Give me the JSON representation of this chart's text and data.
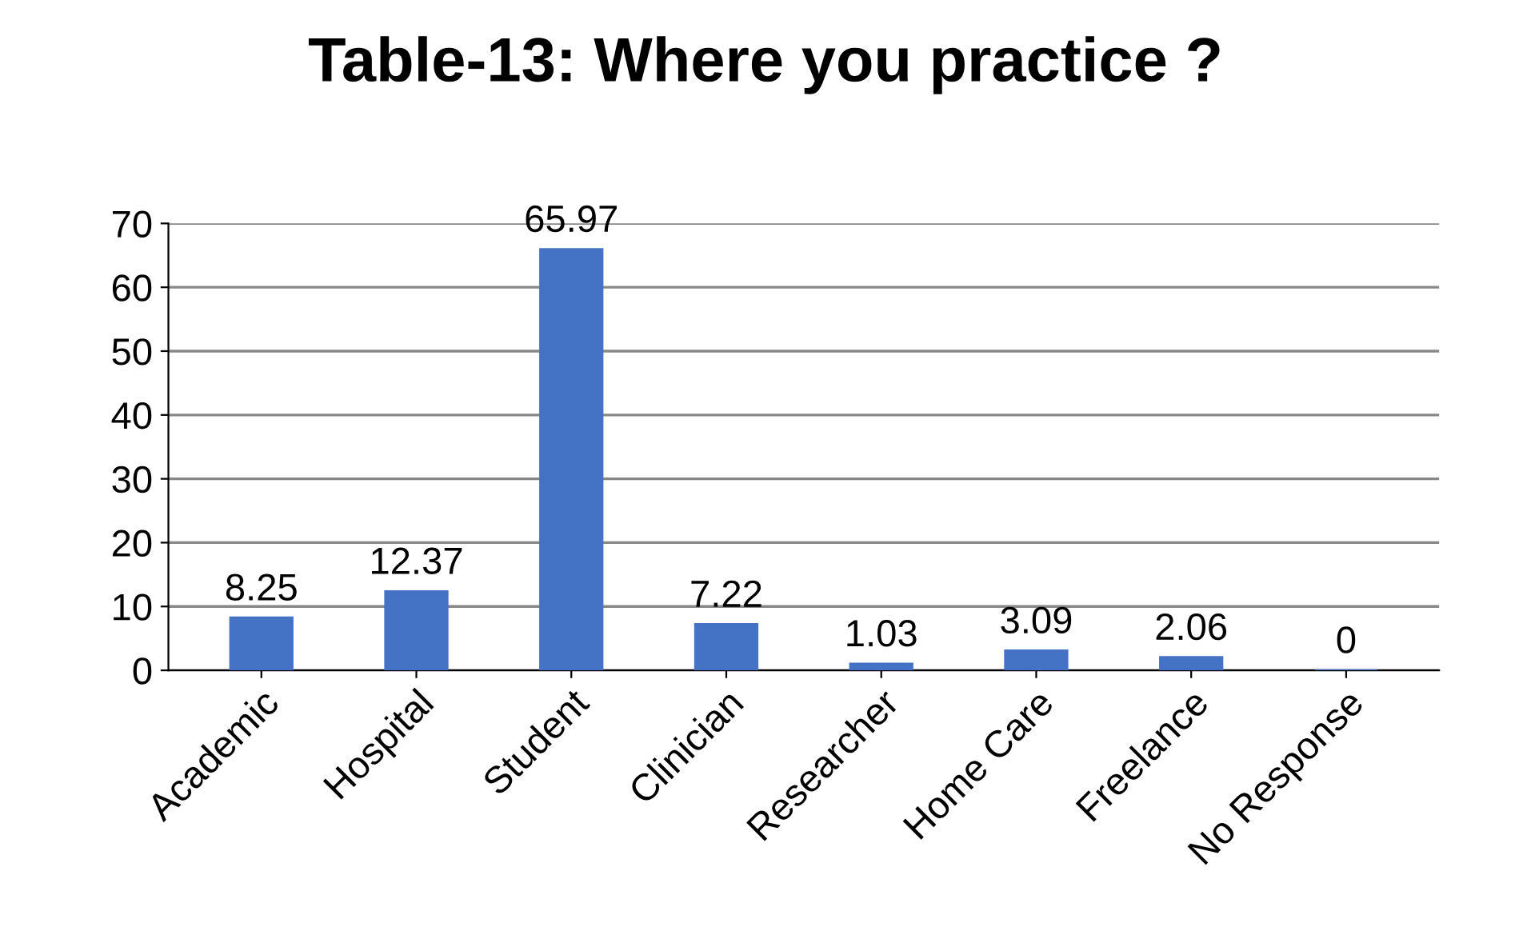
{
  "chart_data": {
    "type": "bar",
    "title": "Table-13: Where you practice ?",
    "categories": [
      "Academic",
      "Hospital",
      "Student",
      "Clinician",
      "Researcher",
      "Home Care",
      "Freelance",
      "No Response"
    ],
    "values": [
      8.25,
      12.37,
      65.97,
      7.22,
      1.03,
      3.09,
      2.06,
      0
    ],
    "color": "#4472c4",
    "ylim": [
      0,
      70
    ],
    "yticks": [
      0,
      10,
      20,
      30,
      40,
      50,
      60,
      70
    ],
    "grid": "y",
    "data_labels": true
  }
}
